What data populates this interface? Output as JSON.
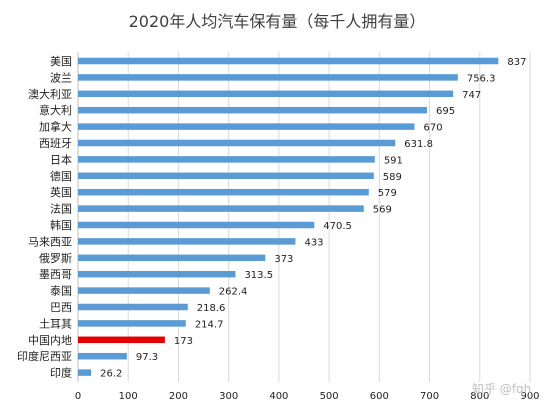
{
  "chart_data": {
    "type": "bar",
    "orientation": "horizontal",
    "title": "2020年人均汽车保有量（每千人拥有量）",
    "categories": [
      "美国",
      "波兰",
      "澳大利亚",
      "意大利",
      "加拿大",
      "西班牙",
      "日本",
      "德国",
      "英国",
      "法国",
      "韩国",
      "马来西亚",
      "俄罗斯",
      "墨西哥",
      "泰国",
      "巴西",
      "土耳其",
      "中国内地",
      "印度尼西亚",
      "印度"
    ],
    "values": [
      837,
      756.3,
      747,
      695,
      670,
      631.8,
      591,
      589,
      579,
      569,
      470.5,
      433,
      373,
      313.5,
      262.4,
      218.6,
      214.7,
      173,
      97.3,
      26.2
    ],
    "value_labels": [
      "837",
      "756.3",
      "747",
      "695",
      "670",
      "631.8",
      "591",
      "589",
      "579",
      "569",
      "470.5",
      "433",
      "373",
      "313.5",
      "262.4",
      "218.6",
      "214.7",
      "173",
      "97.3",
      "26.2"
    ],
    "xlim": [
      0,
      900
    ],
    "xticks": [
      "0",
      "100",
      "200",
      "300",
      "400",
      "500",
      "600",
      "700",
      "800",
      "900"
    ],
    "grid": true,
    "colors": {
      "default_bar": "#5b9bd5",
      "highlight_bar": "#e00000",
      "grid": "#d9d9d9",
      "axis": "#bfbfbf"
    },
    "highlight_category": "中国内地"
  },
  "watermark": "知乎 @fqh"
}
